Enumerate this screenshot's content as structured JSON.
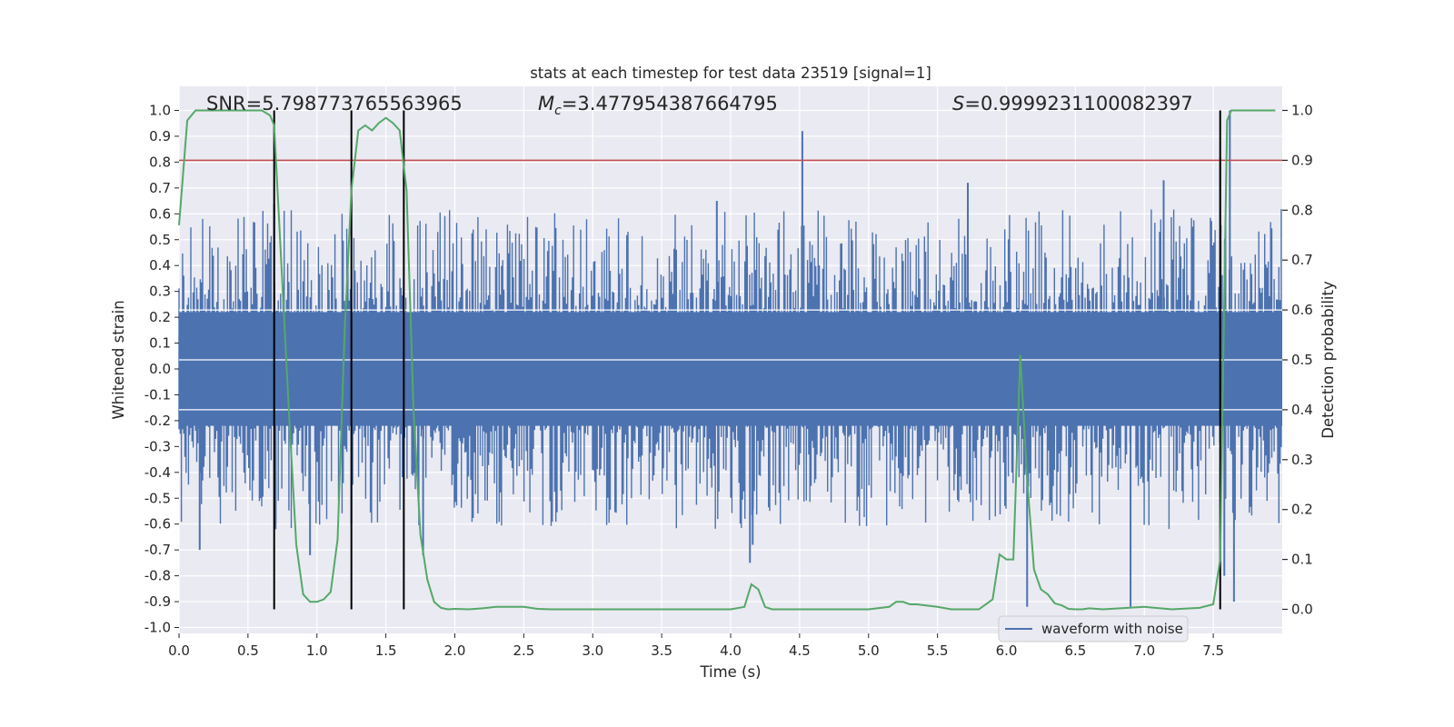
{
  "chart_data": {
    "type": "line",
    "title": "stats at each timestep for test data 23519 [signal=1]",
    "xlabel": "Time (s)",
    "ylabel": "Whitened strain",
    "ylabel_right": "Detection probability",
    "xlim": [
      0.0,
      8.0
    ],
    "ylim": [
      -1.05,
      1.1
    ],
    "ylim_right": [
      -0.05,
      1.05
    ],
    "x_ticks": [
      "0.0",
      "0.5",
      "1.0",
      "1.5",
      "2.0",
      "2.5",
      "3.0",
      "3.5",
      "4.0",
      "4.5",
      "5.0",
      "5.5",
      "6.0",
      "6.5",
      "7.0",
      "7.5"
    ],
    "y_ticks": [
      "1.0",
      "0.9",
      "0.8",
      "0.7",
      "0.6",
      "0.5",
      "0.4",
      "0.3",
      "0.2",
      "0.1",
      "0.0",
      "-0.1",
      "-0.2",
      "-0.3",
      "-0.4",
      "-0.5",
      "-0.6",
      "-0.7",
      "-0.8",
      "-0.9",
      "-1.0"
    ],
    "y_ticks_right": [
      "1.0",
      "0.9",
      "0.8",
      "0.7",
      "0.6",
      "0.5",
      "0.4",
      "0.3",
      "0.2",
      "0.1",
      "0.0"
    ],
    "annotations": {
      "snr": "SNR=5.798773765563965",
      "mc_prefix": "M",
      "mc_sub": "c",
      "mc_value": "=3.477954387664795",
      "s_prefix": "S",
      "s_value": "=0.9999231100082397"
    },
    "threshold_right": 0.9,
    "vertical_markers_x": [
      0.69,
      1.25,
      1.63,
      7.55
    ],
    "series": [
      {
        "name": "waveform with noise",
        "color": "#4c72b0",
        "axis": "left",
        "spikes": [
          {
            "x": 0.69,
            "y": 0.64
          },
          {
            "x": 0.7,
            "y": -0.62
          },
          {
            "x": 1.25,
            "y": -0.6
          },
          {
            "x": 4.52,
            "y": 0.92
          },
          {
            "x": 4.14,
            "y": -0.75
          },
          {
            "x": 4.16,
            "y": -0.68
          },
          {
            "x": 6.15,
            "y": -0.92
          },
          {
            "x": 6.9,
            "y": -0.92
          },
          {
            "x": 7.55,
            "y": 0.82
          },
          {
            "x": 7.62,
            "y": 1.0
          },
          {
            "x": 7.65,
            "y": -0.9
          },
          {
            "x": 7.58,
            "y": -0.8
          },
          {
            "x": 5.72,
            "y": 0.72
          },
          {
            "x": 7.14,
            "y": 0.73
          },
          {
            "x": 0.15,
            "y": -0.7
          },
          {
            "x": 1.77,
            "y": -0.72
          },
          {
            "x": 3.9,
            "y": 0.65
          },
          {
            "x": 0.95,
            "y": -0.72
          }
        ]
      },
      {
        "name": "detection probability",
        "color": "#55a868",
        "axis": "right",
        "x": [
          0.0,
          0.06,
          0.12,
          0.2,
          0.3,
          0.4,
          0.5,
          0.6,
          0.66,
          0.69,
          0.75,
          0.8,
          0.85,
          0.9,
          0.95,
          1.0,
          1.05,
          1.1,
          1.15,
          1.2,
          1.25,
          1.3,
          1.35,
          1.4,
          1.45,
          1.5,
          1.55,
          1.6,
          1.65,
          1.7,
          1.75,
          1.8,
          1.85,
          1.9,
          1.95,
          2.0,
          2.1,
          2.2,
          2.3,
          2.4,
          2.5,
          2.6,
          2.7,
          2.8,
          3.0,
          3.5,
          4.0,
          4.1,
          4.15,
          4.2,
          4.25,
          4.3,
          4.4,
          4.5,
          5.0,
          5.15,
          5.2,
          5.25,
          5.3,
          5.35,
          5.5,
          5.6,
          5.7,
          5.8,
          5.9,
          5.95,
          6.0,
          6.05,
          6.1,
          6.15,
          6.2,
          6.25,
          6.3,
          6.35,
          6.4,
          6.45,
          6.5,
          6.55,
          6.6,
          6.7,
          7.0,
          7.2,
          7.4,
          7.5,
          7.55,
          7.6,
          7.63,
          7.7,
          7.8,
          7.95
        ],
        "y": [
          0.77,
          0.98,
          1.0,
          1.0,
          1.0,
          1.0,
          1.0,
          1.0,
          0.99,
          0.97,
          0.65,
          0.38,
          0.13,
          0.03,
          0.015,
          0.015,
          0.02,
          0.035,
          0.14,
          0.55,
          0.84,
          0.96,
          0.97,
          0.96,
          0.975,
          0.985,
          0.975,
          0.96,
          0.84,
          0.4,
          0.15,
          0.06,
          0.015,
          0.003,
          0.0,
          0.001,
          0.0,
          0.002,
          0.005,
          0.005,
          0.005,
          0.001,
          0.0,
          0.0,
          0.0,
          0.0,
          0.0,
          0.005,
          0.05,
          0.04,
          0.005,
          0.0,
          0.0,
          0.0,
          0.0,
          0.005,
          0.015,
          0.015,
          0.01,
          0.01,
          0.005,
          0.0,
          0.0,
          0.0,
          0.02,
          0.11,
          0.1,
          0.1,
          0.51,
          0.26,
          0.08,
          0.04,
          0.03,
          0.012,
          0.008,
          0.001,
          0.0,
          0.0,
          0.002,
          0.0,
          0.005,
          0.0,
          0.003,
          0.01,
          0.1,
          0.98,
          1.0,
          1.0,
          1.0,
          1.0
        ]
      }
    ],
    "legend": [
      {
        "label": "waveform with noise",
        "color": "#4c72b0"
      }
    ],
    "legend_placement": "lower-right",
    "grid": true
  },
  "colors": {
    "axes_bg": "#eaeaf2",
    "grid": "#ffffff",
    "waveform": "#4c72b0",
    "probability": "#55a868",
    "threshold": "#c44e52",
    "markers": "#000000"
  }
}
